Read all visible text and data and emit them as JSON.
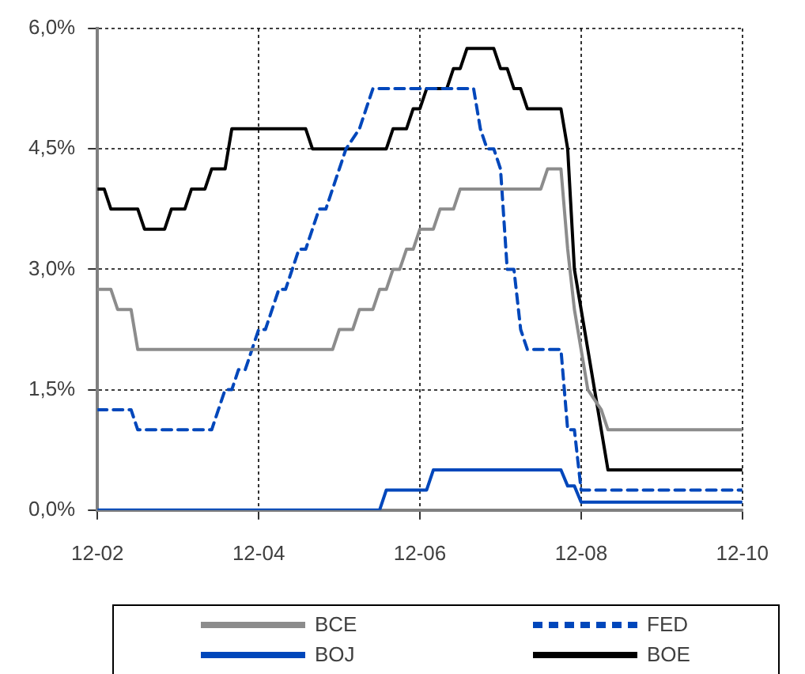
{
  "chart_data": {
    "type": "line",
    "marker": "none",
    "grid": true,
    "legend": "bottom",
    "xlim": [
      "2002-12",
      "2010-12"
    ],
    "xticks": [
      {
        "value": "2002-12",
        "label": "12-02"
      },
      {
        "value": "2004-12",
        "label": "12-04"
      },
      {
        "value": "2006-12",
        "label": "12-06"
      },
      {
        "value": "2008-12",
        "label": "12-08"
      },
      {
        "value": "2010-12",
        "label": "12-10"
      }
    ],
    "ylim": [
      0,
      6
    ],
    "yticks": [
      {
        "value": 0,
        "label": "0,0%"
      },
      {
        "value": 1.5,
        "label": "1,5%"
      },
      {
        "value": 3,
        "label": "3,0%"
      },
      {
        "value": 4.5,
        "label": "4,5%"
      },
      {
        "value": 6,
        "label": "6,0%"
      }
    ],
    "series": [
      {
        "name": "BCE",
        "color": "#8c8c8c",
        "line_style": "solid",
        "x": [
          "2002-12",
          "2003-02",
          "2003-03",
          "2003-05",
          "2003-06",
          "2005-11",
          "2005-12",
          "2006-02",
          "2006-03",
          "2006-05",
          "2006-06",
          "2006-07",
          "2006-08",
          "2006-09",
          "2006-10",
          "2006-11",
          "2006-12",
          "2007-02",
          "2007-03",
          "2007-05",
          "2007-06",
          "2008-06",
          "2008-07",
          "2008-09",
          "2008-10",
          "2008-11",
          "2008-12",
          "2009-01",
          "2009-03",
          "2009-04",
          "2009-05",
          "2010-12"
        ],
        "values": [
          2.75,
          2.75,
          2.5,
          2.5,
          2.0,
          2.0,
          2.25,
          2.25,
          2.5,
          2.5,
          2.75,
          2.75,
          3.0,
          3.0,
          3.25,
          3.25,
          3.5,
          3.5,
          3.75,
          3.75,
          4.0,
          4.0,
          4.25,
          4.25,
          3.25,
          2.5,
          2.0,
          1.5,
          1.25,
          1.0,
          1.0,
          1.0
        ]
      },
      {
        "name": "FED",
        "color": "#0047bb",
        "line_style": "dashed",
        "x": [
          "2002-12",
          "2003-05",
          "2003-06",
          "2004-05",
          "2004-06",
          "2004-07",
          "2004-08",
          "2004-09",
          "2004-10",
          "2004-11",
          "2004-12",
          "2005-01",
          "2005-02",
          "2005-03",
          "2005-04",
          "2005-05",
          "2005-06",
          "2005-07",
          "2005-08",
          "2005-09",
          "2005-10",
          "2005-11",
          "2005-12",
          "2006-01",
          "2006-03",
          "2006-04",
          "2006-05",
          "2007-08",
          "2007-09",
          "2007-10",
          "2007-11",
          "2007-12",
          "2008-01",
          "2008-02",
          "2008-03",
          "2008-04",
          "2008-09",
          "2008-10",
          "2008-11",
          "2008-12",
          "2010-12"
        ],
        "values": [
          1.25,
          1.25,
          1.0,
          1.0,
          1.25,
          1.5,
          1.5,
          1.75,
          1.75,
          2.0,
          2.25,
          2.25,
          2.5,
          2.75,
          2.75,
          3.0,
          3.25,
          3.25,
          3.5,
          3.75,
          3.75,
          4.0,
          4.25,
          4.5,
          4.75,
          5.0,
          5.25,
          5.25,
          4.75,
          4.5,
          4.5,
          4.25,
          3.0,
          3.0,
          2.25,
          2.0,
          2.0,
          1.0,
          1.0,
          0.25,
          0.25
        ]
      },
      {
        "name": "BOJ",
        "color": "#0047bb",
        "line_style": "solid",
        "x": [
          "2002-12",
          "2006-06",
          "2006-07",
          "2007-01",
          "2007-02",
          "2008-09",
          "2008-10",
          "2008-11",
          "2008-12",
          "2010-12"
        ],
        "values": [
          0,
          0,
          0.25,
          0.25,
          0.5,
          0.5,
          0.3,
          0.3,
          0.1,
          0.1
        ]
      },
      {
        "name": "BOE",
        "color": "#000000",
        "line_style": "solid",
        "x": [
          "2002-12",
          "2003-01",
          "2003-02",
          "2003-06",
          "2003-07",
          "2003-10",
          "2003-11",
          "2004-01",
          "2004-02",
          "2004-04",
          "2004-05",
          "2004-07",
          "2004-08",
          "2005-07",
          "2005-08",
          "2006-07",
          "2006-08",
          "2006-10",
          "2006-11",
          "2006-12",
          "2007-01",
          "2007-04",
          "2007-05",
          "2007-06",
          "2007-07",
          "2007-11",
          "2007-12",
          "2008-01",
          "2008-02",
          "2008-03",
          "2008-04",
          "2008-09",
          "2008-10",
          "2008-11",
          "2009-01",
          "2009-02",
          "2009-03",
          "2009-04",
          "2010-12"
        ],
        "values": [
          4.0,
          4.0,
          3.75,
          3.75,
          3.5,
          3.5,
          3.75,
          3.75,
          4.0,
          4.0,
          4.25,
          4.25,
          4.75,
          4.75,
          4.5,
          4.5,
          4.75,
          4.75,
          5.0,
          5.0,
          5.25,
          5.25,
          5.5,
          5.5,
          5.75,
          5.75,
          5.5,
          5.5,
          5.25,
          5.25,
          5.0,
          5.0,
          4.5,
          3.0,
          2.0,
          1.5,
          1.0,
          0.5,
          0.5
        ]
      }
    ]
  }
}
